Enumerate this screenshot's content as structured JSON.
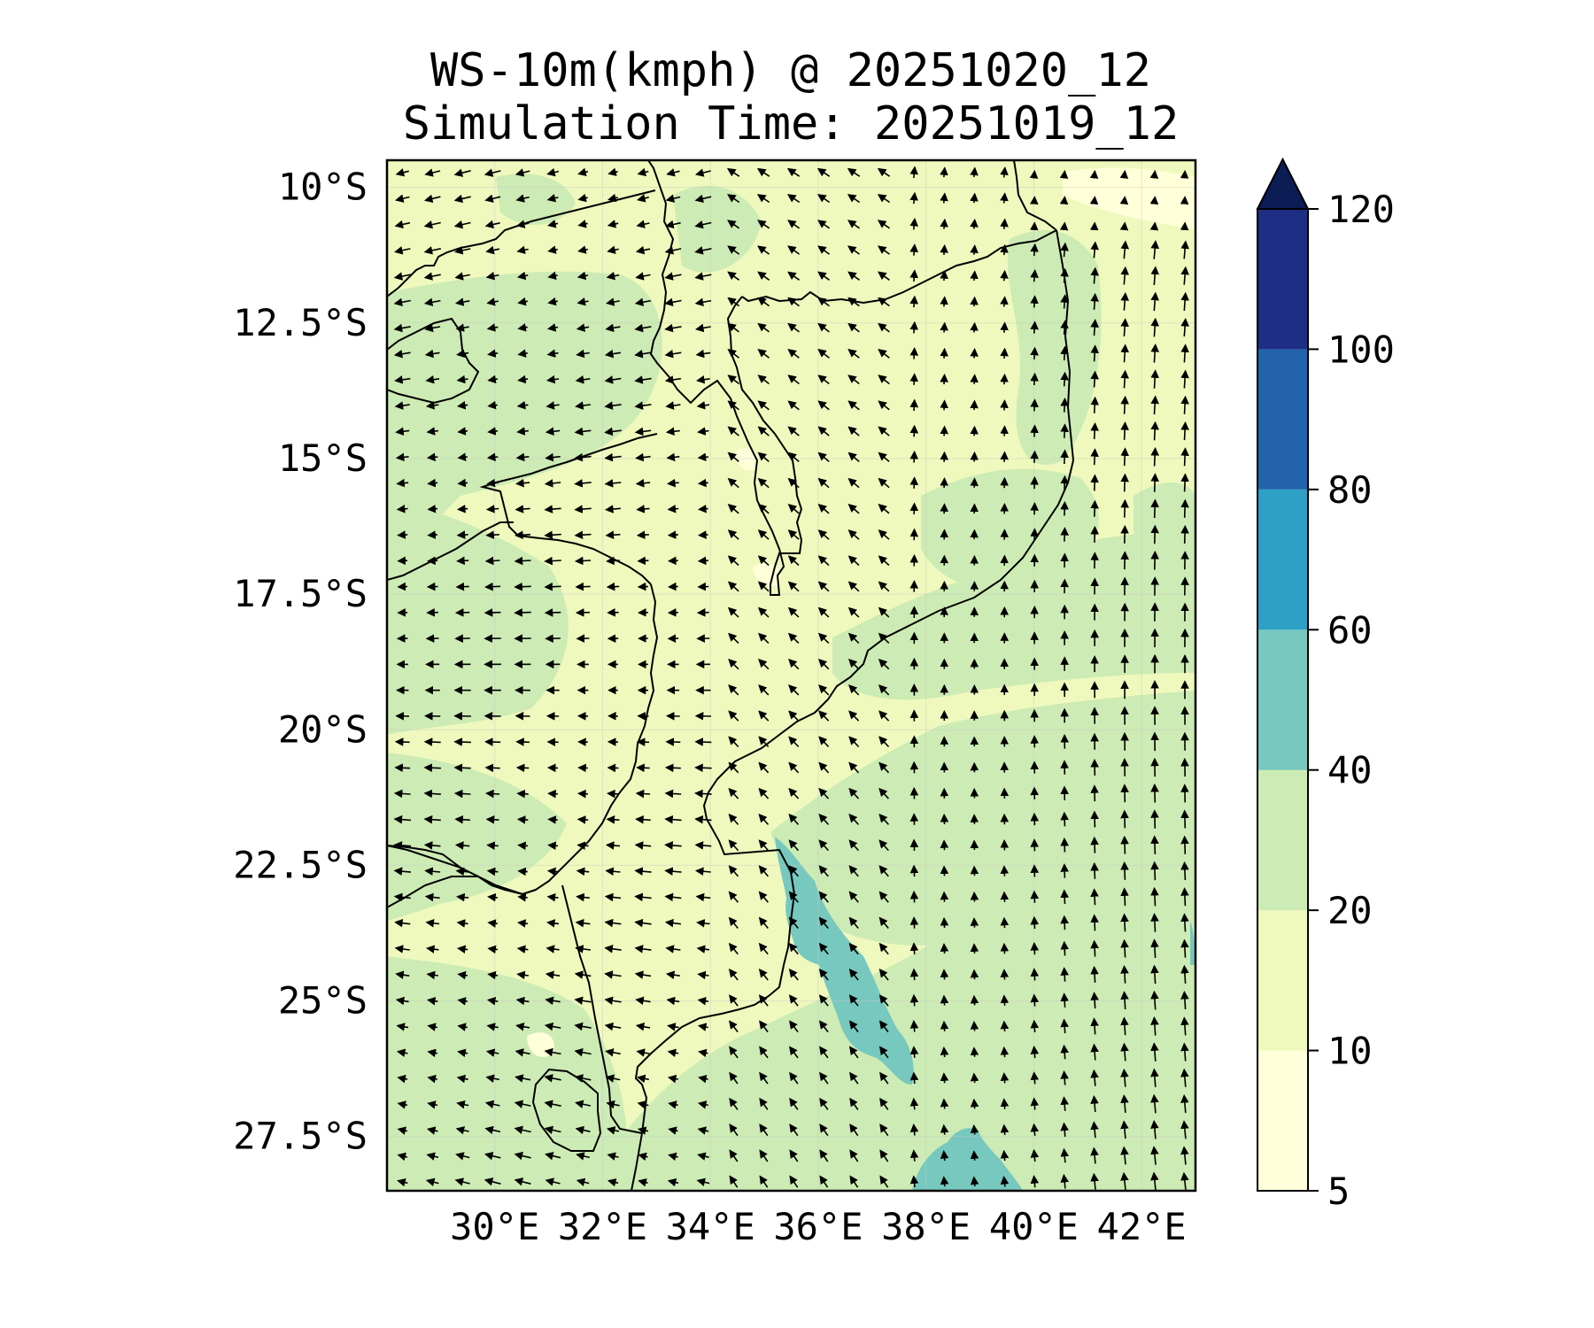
{
  "title": {
    "line1": "WS-10m(kmph) @ 20251020_12",
    "line2": "Simulation Time: 20251019_12"
  },
  "map": {
    "lon_range": [
      28,
      43
    ],
    "lat_range": [
      -28.5,
      -9.5
    ],
    "lat_ticks": [
      {
        "value": -10,
        "label": "10°S"
      },
      {
        "value": -12.5,
        "label": "12.5°S"
      },
      {
        "value": -15,
        "label": "15°S"
      },
      {
        "value": -17.5,
        "label": "17.5°S"
      },
      {
        "value": -20,
        "label": "20°S"
      },
      {
        "value": -22.5,
        "label": "22.5°S"
      },
      {
        "value": -25,
        "label": "25°S"
      },
      {
        "value": -27.5,
        "label": "27.5°S"
      }
    ],
    "lon_ticks": [
      {
        "value": 30,
        "label": "30°E"
      },
      {
        "value": 32,
        "label": "32°E"
      },
      {
        "value": 34,
        "label": "34°E"
      },
      {
        "value": 36,
        "label": "36°E"
      },
      {
        "value": 38,
        "label": "38°E"
      },
      {
        "value": 40,
        "label": "40°E"
      },
      {
        "value": 42,
        "label": "42°E"
      }
    ]
  },
  "colorbar": {
    "levels": [
      {
        "label": "5",
        "color": "#ffffd9"
      },
      {
        "label": "10",
        "color": "#eff9bd"
      },
      {
        "label": "20",
        "color": "#cdebb4"
      },
      {
        "label": "40",
        "color": "#77c8be"
      },
      {
        "label": "60",
        "color": "#2e9fc5"
      },
      {
        "label": "80",
        "color": "#2263ac"
      },
      {
        "label": "100",
        "color": "#1e2e84"
      },
      {
        "label": "120",
        "color": "#0c1c55"
      }
    ],
    "extend": "max"
  }
}
